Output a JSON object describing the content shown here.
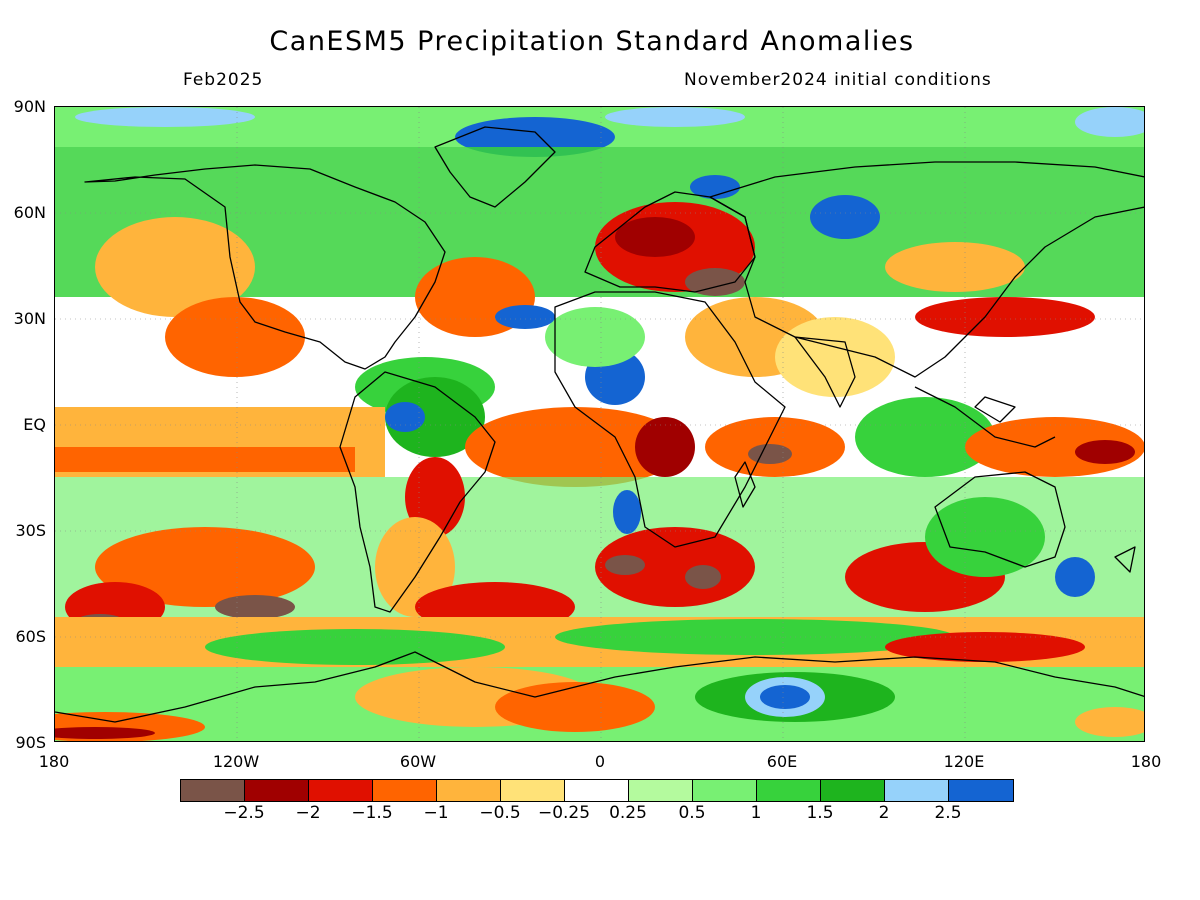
{
  "header": {
    "title": "CanESM5 Precipitation Standard Anomalies",
    "valid_month": "Feb2025",
    "init_conditions": "November2024 initial conditions"
  },
  "map": {
    "projection": "cylindrical equidistant",
    "lon_range": [
      -180,
      180
    ],
    "lat_range": [
      -90,
      90
    ],
    "y_tick_labels": [
      "90N",
      "60N",
      "30N",
      "EQ",
      "30S",
      "60S",
      "90S"
    ],
    "x_tick_labels": [
      "180",
      "120W",
      "60W",
      "0",
      "60E",
      "120E",
      "180"
    ],
    "background_color": "#ffffff",
    "coastline_color": "#000000"
  },
  "colorbar": {
    "colors": [
      "#7a5448",
      "#a00000",
      "#e01000",
      "#ff6400",
      "#ffb43c",
      "#ffe278",
      "#ffffff",
      "#b4fa9e",
      "#78f073",
      "#37d23c",
      "#1eb41e",
      "#96d2fa",
      "#1464d2"
    ],
    "labels": [
      "−2.5",
      "−2",
      "−1.5",
      "−1",
      "−0.5",
      "−0.25",
      "0.25",
      "0.5",
      "1",
      "1.5",
      "2",
      "2.5"
    ]
  }
}
